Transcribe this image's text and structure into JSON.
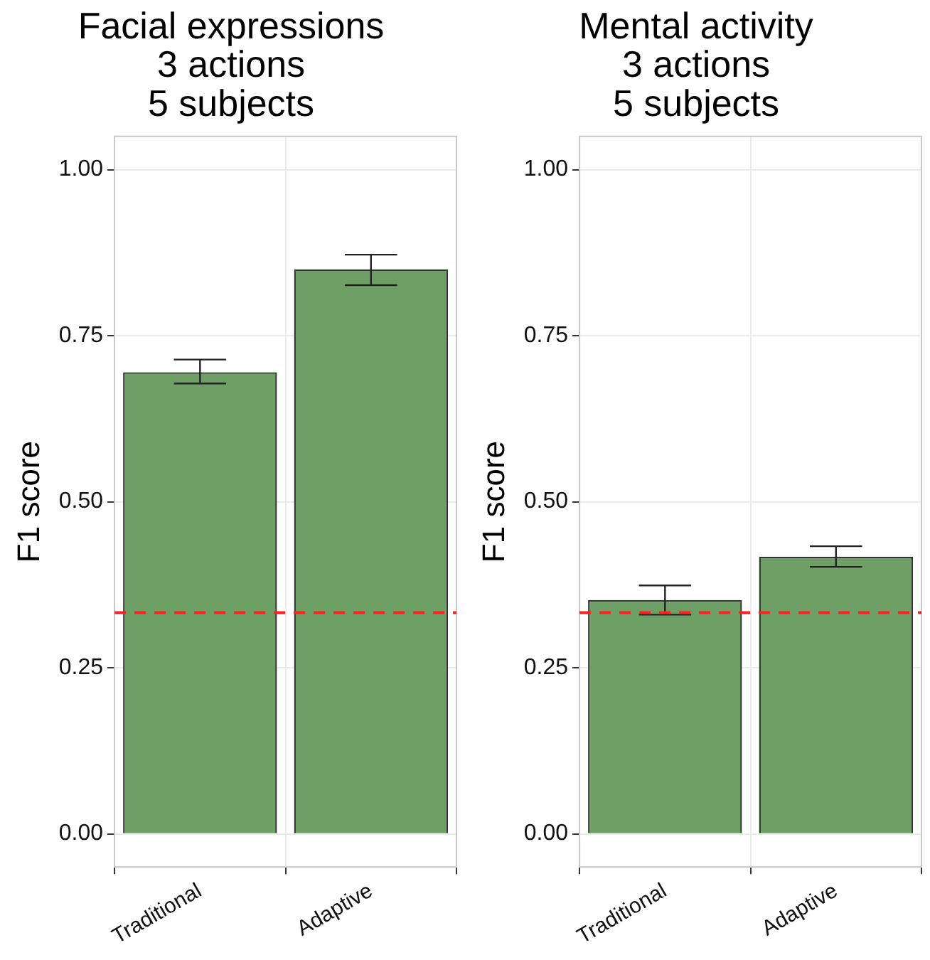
{
  "chart_data": [
    {
      "type": "bar",
      "title": "Facial expressions\n3 actions\n5 subjects",
      "ylabel": "F1 score",
      "categories": [
        "Traditional",
        "Adaptive"
      ],
      "values": [
        0.695,
        0.85
      ],
      "color": "#6e9f65",
      "errors": [
        [
          0.678,
          0.714
        ],
        [
          0.826,
          0.872
        ]
      ],
      "ylim": [
        -0.05,
        1.05
      ],
      "yticks": [
        {
          "value": 0,
          "label": "0.00"
        },
        {
          "value": 0.25,
          "label": "0.25"
        },
        {
          "value": 0.5,
          "label": "0.50"
        },
        {
          "value": 0.75,
          "label": "0.75"
        },
        {
          "value": 1,
          "label": "1.00"
        }
      ],
      "grid": true,
      "ref_lines": [
        {
          "axis": "y",
          "value": 0.333,
          "color": "#ff2020",
          "line_style": "dashed"
        }
      ]
    },
    {
      "type": "bar",
      "title": "Mental activity\n3 actions\n5 subjects",
      "ylabel": "F1 score",
      "categories": [
        "Traditional",
        "Adaptive"
      ],
      "values": [
        0.352,
        0.417
      ],
      "color": "#6e9f65",
      "errors": [
        [
          0.33,
          0.374
        ],
        [
          0.402,
          0.433
        ]
      ],
      "ylim": [
        -0.05,
        1.05
      ],
      "yticks": [
        {
          "value": 0,
          "label": "0.00"
        },
        {
          "value": 0.25,
          "label": "0.25"
        },
        {
          "value": 0.5,
          "label": "0.50"
        },
        {
          "value": 0.75,
          "label": "0.75"
        },
        {
          "value": 1,
          "label": "1.00"
        }
      ],
      "grid": true,
      "ref_lines": [
        {
          "axis": "y",
          "value": 0.333,
          "color": "#ff2020",
          "line_style": "dashed"
        }
      ]
    }
  ]
}
